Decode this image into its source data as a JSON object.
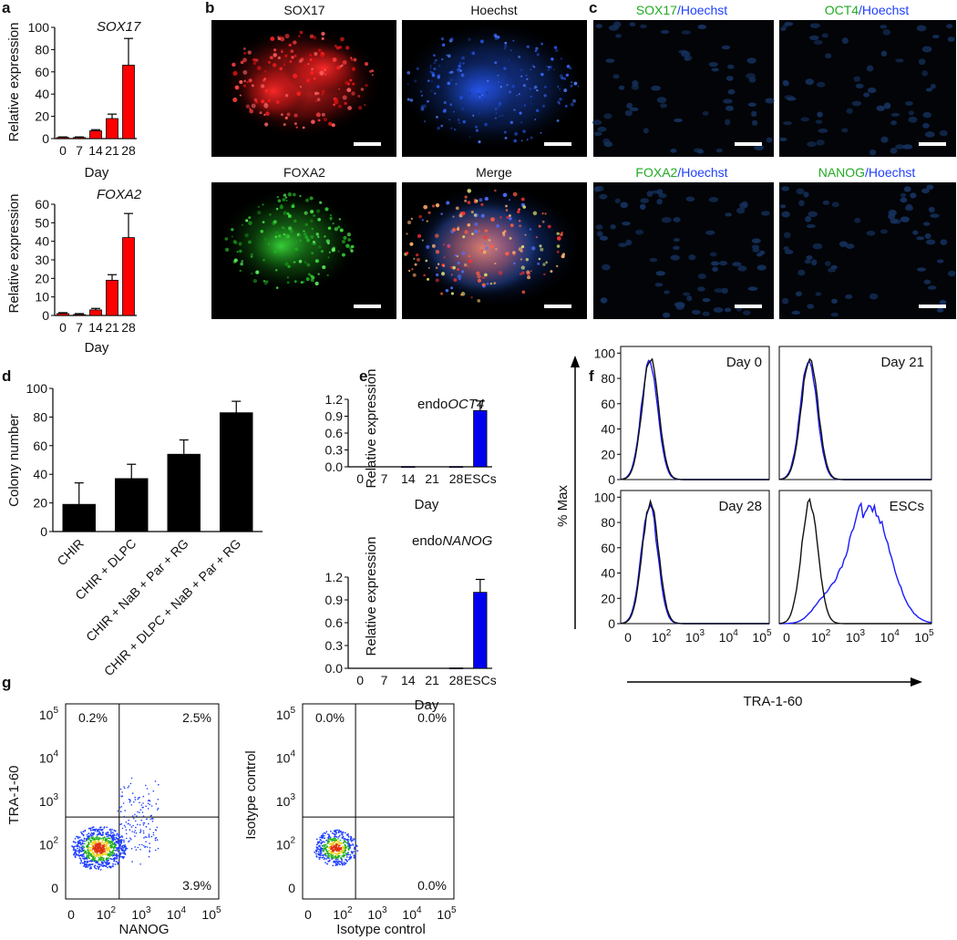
{
  "panels": {
    "a": {
      "label": "a",
      "charts": [
        {
          "title": "SOX17",
          "ylabel": "Relative expression",
          "xlabel": "Day"
        },
        {
          "title": "FOXA2",
          "ylabel": "Relative expression",
          "xlabel": "Day"
        }
      ]
    },
    "b": {
      "label": "b",
      "images": [
        {
          "label": "SOX17",
          "color": "#ff2020"
        },
        {
          "label": "Hoechst",
          "color": "#2040ff"
        },
        {
          "label": "FOXA2",
          "color": "#22aa22"
        },
        {
          "label": "Merge",
          "color": "#111111"
        }
      ]
    },
    "c": {
      "label": "c",
      "images": [
        {
          "parts": [
            {
              "text": "SOX17",
              "color": "#22aa22"
            },
            {
              "text": "/Hoechst",
              "color": "#2040ff"
            }
          ]
        },
        {
          "parts": [
            {
              "text": "OCT4",
              "color": "#22aa22"
            },
            {
              "text": "/Hoechst",
              "color": "#2040ff"
            }
          ]
        },
        {
          "parts": [
            {
              "text": "FOXA2",
              "color": "#22aa22"
            },
            {
              "text": "/Hoechst",
              "color": "#2040ff"
            }
          ]
        },
        {
          "parts": [
            {
              "text": "NANOG",
              "color": "#22aa22"
            },
            {
              "text": "/Hoechst",
              "color": "#2040ff"
            }
          ]
        }
      ]
    },
    "d": {
      "label": "d",
      "ylabel": "Colony number"
    },
    "e": {
      "label": "e",
      "charts": [
        {
          "title_prefix": "endo",
          "title_gene": "OCT4",
          "ylabel": "Relative expression",
          "xlabel": "Day"
        },
        {
          "title_prefix": "endo",
          "title_gene": "NANOG",
          "ylabel": "Relative expression",
          "xlabel": "Day"
        }
      ]
    },
    "f": {
      "label": "f",
      "ylabel": "% Max",
      "xlabel": "TRA-1-60",
      "y_ticks": [
        "0",
        "20",
        "40",
        "60",
        "80",
        "100"
      ],
      "x_ticks": [
        "0",
        "10",
        "10",
        "10",
        "10"
      ],
      "x_tick_exps": [
        "",
        "2",
        "3",
        "4",
        "5"
      ],
      "plots": [
        {
          "label": "Day 0"
        },
        {
          "label": "Day 21"
        },
        {
          "label": "Day 28"
        },
        {
          "label": "ESCs"
        }
      ],
      "colors": {
        "control": "#111111",
        "sample": "#1a1aff"
      }
    },
    "g": {
      "label": "g",
      "plots": [
        {
          "ylabel": "TRA-1-60",
          "xlabel": "NANOG",
          "quadrants": {
            "ul": "0.2%",
            "ur": "2.5%",
            "lr": "3.9%"
          }
        },
        {
          "ylabel": "Isotype control",
          "xlabel": "Isotype control",
          "quadrants": {
            "ul": "0.0%",
            "ur": "0.0%",
            "lr": "0.0%"
          }
        }
      ],
      "y_ticks": [
        "0",
        "10",
        "10",
        "10",
        "10"
      ],
      "y_tick_exps": [
        "",
        "2",
        "3",
        "4",
        "5"
      ],
      "x_ticks": [
        "0",
        "10",
        "10",
        "10",
        "10"
      ],
      "x_tick_exps": [
        "",
        "2",
        "3",
        "4",
        "5"
      ]
    }
  },
  "chart_data": [
    {
      "type": "bar",
      "panel": "a",
      "title": "SOX17",
      "xlabel": "Day",
      "ylabel": "Relative expression",
      "categories": [
        "0",
        "7",
        "14",
        "21",
        "28"
      ],
      "values": [
        1,
        1,
        7,
        18,
        66
      ],
      "errors": [
        0.5,
        0.5,
        1,
        4,
        24
      ],
      "ylim": [
        0,
        100
      ],
      "yticks": [
        0,
        20,
        40,
        60,
        80,
        100
      ],
      "color": "#ff0000"
    },
    {
      "type": "bar",
      "panel": "a",
      "title": "FOXA2",
      "xlabel": "Day",
      "ylabel": "Relative expression",
      "categories": [
        "0",
        "7",
        "14",
        "21",
        "28"
      ],
      "values": [
        1,
        0.5,
        3,
        19,
        42
      ],
      "errors": [
        0.5,
        0.5,
        0.8,
        3,
        13
      ],
      "ylim": [
        0,
        60
      ],
      "yticks": [
        0,
        10,
        20,
        30,
        40,
        50,
        60
      ],
      "color": "#ff0000"
    },
    {
      "type": "bar",
      "panel": "d",
      "ylabel": "Colony number",
      "categories": [
        "CHIR",
        "CHIR + DLPC",
        "CHIR + NaB + Par + RG",
        "CHIR + DLPC + NaB + Par + RG"
      ],
      "values": [
        19,
        37,
        54,
        83
      ],
      "errors": [
        15,
        10,
        10,
        8
      ],
      "ylim": [
        0,
        100
      ],
      "yticks": [
        0,
        20,
        40,
        60,
        80,
        100
      ],
      "color": "#000000"
    },
    {
      "type": "bar",
      "panel": "e",
      "title": "endoOCT4",
      "xlabel": "Day",
      "ylabel": "Relative expression",
      "categories": [
        "0",
        "7",
        "14",
        "21",
        "28",
        "ESCs"
      ],
      "values": [
        0,
        0,
        0.005,
        0,
        0.005,
        1.0
      ],
      "errors": [
        0,
        0,
        0,
        0,
        0,
        0.17
      ],
      "ylim": [
        0,
        1.2
      ],
      "yticks": [
        0.0,
        0.3,
        0.6,
        0.9,
        1.2
      ],
      "color": "#0000ee"
    },
    {
      "type": "bar",
      "panel": "e",
      "title": "endoNANOG",
      "xlabel": "Day",
      "ylabel": "Relative expression",
      "categories": [
        "0",
        "7",
        "14",
        "21",
        "28",
        "ESCs"
      ],
      "values": [
        0,
        0,
        0,
        0,
        0.005,
        1.0
      ],
      "errors": [
        0,
        0,
        0,
        0,
        0,
        0.17
      ],
      "ylim": [
        0,
        1.2
      ],
      "yticks": [
        0.0,
        0.3,
        0.6,
        0.9,
        1.2
      ],
      "color": "#0000ee"
    }
  ]
}
